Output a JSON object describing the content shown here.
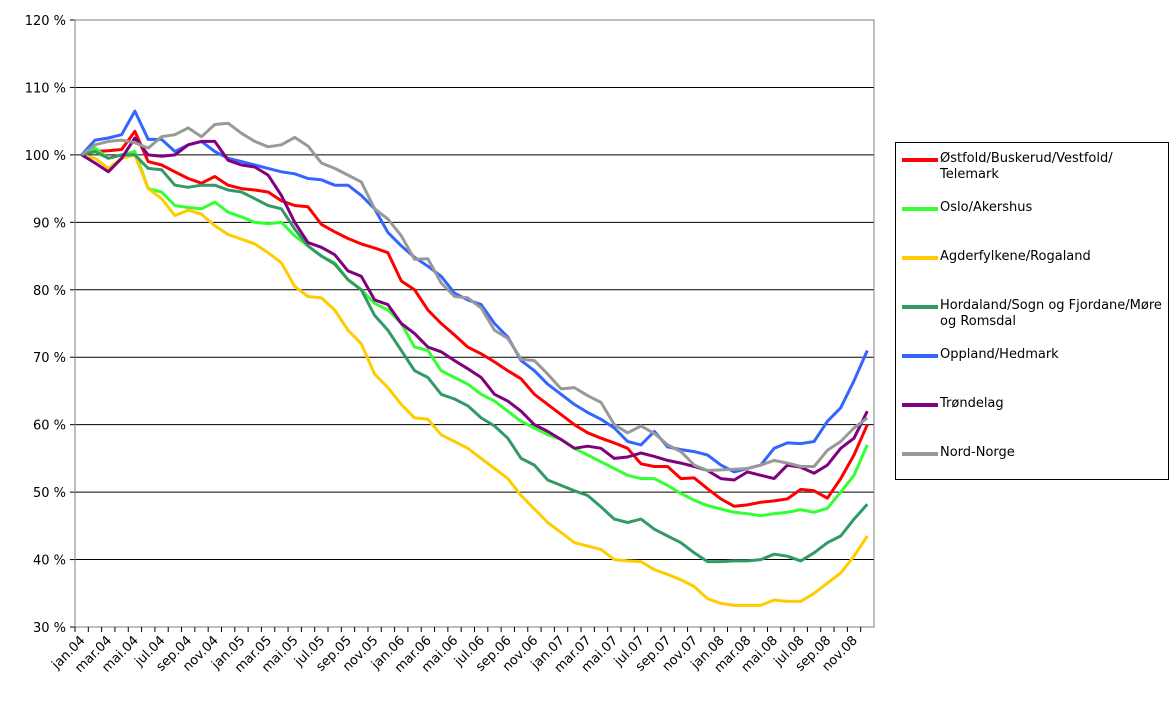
{
  "chart_data": {
    "type": "line",
    "categories": [
      "jan.04",
      null,
      "mar.04",
      null,
      "mai.04",
      null,
      "jul.04",
      null,
      "sep.04",
      null,
      "nov.04",
      null,
      "jan.05",
      null,
      "mar.05",
      null,
      "mai.05",
      null,
      "jul.05",
      null,
      "sep.05",
      null,
      "nov.05",
      null,
      "jan.06",
      null,
      "mar.06",
      null,
      "mai.06",
      null,
      "jul.06",
      null,
      "sep.06",
      null,
      "nov.06",
      null,
      "jan.07",
      null,
      "mar.07",
      null,
      "mai.07",
      null,
      "jul.07",
      null,
      "sep.07",
      null,
      "nov.07",
      null,
      "jan.08",
      null,
      "mar.08",
      null,
      "mai.08",
      null,
      "jul.08",
      null,
      "sep.08",
      null,
      "nov.08",
      null
    ],
    "ylim": [
      30,
      120
    ],
    "yticks": [
      {
        "value": 30,
        "label": "30 %"
      },
      {
        "value": 40,
        "label": "40 %"
      },
      {
        "value": 50,
        "label": "50 %"
      },
      {
        "value": 60,
        "label": "60 %"
      },
      {
        "value": 70,
        "label": "70 %"
      },
      {
        "value": 80,
        "label": "80 %"
      },
      {
        "value": 90,
        "label": "90 %"
      },
      {
        "value": 100,
        "label": "100 %"
      },
      {
        "value": 110,
        "label": "110 %"
      },
      {
        "value": 120,
        "label": "120 %"
      }
    ],
    "grid": true,
    "legend": "right",
    "series": [
      {
        "name": "Østfold/Buskerud/Vestfold/Telemark",
        "color": "#ff0000",
        "values": [
          100,
          100.5,
          100.6,
          100.8,
          103.5,
          99,
          98.5,
          97.5,
          96.5,
          95.8,
          96.8,
          95.5,
          95,
          94.8,
          94.5,
          93.2,
          92.5,
          92.3,
          89.7,
          88.6,
          87.6,
          86.8,
          86.2,
          85.5,
          81.3,
          80,
          77,
          75,
          73.3,
          71.5,
          70.5,
          69.3,
          68,
          66.8,
          64.5,
          63,
          61.5,
          60,
          58.8,
          58,
          57.3,
          56.5,
          54.2,
          53.8,
          53.8,
          52,
          52.1,
          50.5,
          49,
          47.9,
          48.1,
          48.5,
          48.7,
          49,
          50.4,
          50.2,
          49.1,
          52,
          55.5,
          60
        ]
      },
      {
        "name": "Oslo/Akershus",
        "color": "#33ff33",
        "values": [
          100,
          101,
          99.5,
          100,
          100.5,
          95,
          94.5,
          92.5,
          92.2,
          92,
          93,
          91.5,
          90.8,
          90,
          89.8,
          90,
          88,
          86.5,
          85,
          84,
          81.5,
          80,
          78,
          77,
          75,
          71.5,
          71,
          68,
          67,
          66,
          64.5,
          63.5,
          62,
          60.5,
          59.5,
          58.5,
          57.8,
          56.5,
          55.5,
          54.5,
          53.5,
          52.5,
          52,
          52,
          51,
          49.8,
          48.8,
          48,
          47.5,
          47,
          46.8,
          46.5,
          46.8,
          47,
          47.4,
          47,
          47.6,
          50,
          52.5,
          57
        ]
      },
      {
        "name": "Agderfylkene/Rogaland",
        "color": "#ffcc00",
        "values": [
          100,
          99.5,
          98,
          99.5,
          100,
          95,
          93.5,
          91,
          91.8,
          91.2,
          89.5,
          88.2,
          87.5,
          86.8,
          85.5,
          84,
          80.5,
          79,
          78.8,
          77,
          74,
          72,
          67.5,
          65.5,
          63,
          61,
          60.8,
          58.5,
          57.5,
          56.5,
          55,
          53.5,
          52,
          49.5,
          47.5,
          45.5,
          44,
          42.5,
          42,
          41.5,
          40,
          39.8,
          39.7,
          38.5,
          37.8,
          37,
          36,
          34.2,
          33.5,
          33.2,
          33.2,
          33.2,
          34,
          33.8,
          33.8,
          35,
          36.5,
          38,
          40.5,
          43.5
        ]
      },
      {
        "name": "Hordaland/Sogn og Fjordane/Møre og Romsdal",
        "color": "#339966",
        "values": [
          100,
          100.5,
          99.5,
          100,
          100,
          98,
          97.8,
          95.5,
          95.2,
          95.5,
          95.5,
          94.8,
          94.5,
          93.5,
          92.5,
          92,
          89,
          86.5,
          85,
          83.8,
          81.5,
          80,
          76.2,
          74,
          71,
          68,
          67,
          64.5,
          63.8,
          62.8,
          61,
          59.8,
          58,
          55,
          54,
          51.8,
          51,
          50.2,
          49.5,
          47.8,
          46,
          45.5,
          46,
          44.5,
          43.5,
          42.5,
          41,
          39.7,
          39.7,
          39.8,
          39.8,
          40,
          40.8,
          40.5,
          39.8,
          41,
          42.5,
          43.5,
          46,
          48.2
        ]
      },
      {
        "name": "Oppland/Hedmark",
        "color": "#3366ff",
        "values": [
          100,
          102.2,
          102.5,
          103,
          106.5,
          102.3,
          102.3,
          100.5,
          101.5,
          102,
          100.5,
          99.5,
          99,
          98.5,
          98,
          97.5,
          97.2,
          96.5,
          96.3,
          95.5,
          95.5,
          94,
          92,
          88.5,
          86.5,
          84.8,
          83.5,
          82,
          79.5,
          78.5,
          77.8,
          75,
          73,
          69.5,
          68,
          66,
          64.5,
          63,
          61.8,
          60.8,
          59.5,
          57.5,
          57,
          59,
          56.7,
          56.3,
          56,
          55.5,
          54,
          53,
          53.5,
          54,
          56.5,
          57.3,
          57.2,
          57.5,
          60.5,
          62.5,
          66.5,
          71
        ]
      },
      {
        "name": "Trøndelag",
        "color": "#800080",
        "values": [
          100,
          98.8,
          97.5,
          99.5,
          102.5,
          100,
          99.8,
          100,
          101.5,
          102,
          102,
          99.2,
          98.5,
          98.2,
          97,
          94,
          90,
          87,
          86.3,
          85.2,
          82.8,
          82,
          78.5,
          77.8,
          75,
          73.5,
          71.5,
          70.8,
          69.5,
          68.3,
          67,
          64.5,
          63.5,
          62,
          60,
          59,
          57.8,
          56.5,
          56.8,
          56.5,
          55,
          55.2,
          55.8,
          55.3,
          54.7,
          54.3,
          53.8,
          53.2,
          52,
          51.8,
          53,
          52.5,
          52,
          54,
          53.7,
          52.8,
          54,
          56.5,
          58,
          62
        ]
      },
      {
        "name": "Nord-Norge",
        "color": "#999999",
        "values": [
          100,
          101.5,
          102,
          102.2,
          101.8,
          101,
          102.7,
          103,
          104,
          102.7,
          104.5,
          104.7,
          103.2,
          102,
          101.2,
          101.5,
          102.6,
          101.3,
          98.8,
          98,
          97,
          96,
          92,
          90.5,
          88,
          84.5,
          84.6,
          81,
          79,
          78.8,
          77.3,
          74,
          72.8,
          69.7,
          69.5,
          67.5,
          65.3,
          65.5,
          64.3,
          63.3,
          60,
          58.8,
          59.8,
          58.7,
          57,
          56,
          54,
          53.2,
          53.3,
          53.4,
          53.5,
          54,
          54.7,
          54.3,
          53.8,
          53.8,
          56.2,
          57.5,
          59.5,
          61
        ]
      }
    ]
  }
}
